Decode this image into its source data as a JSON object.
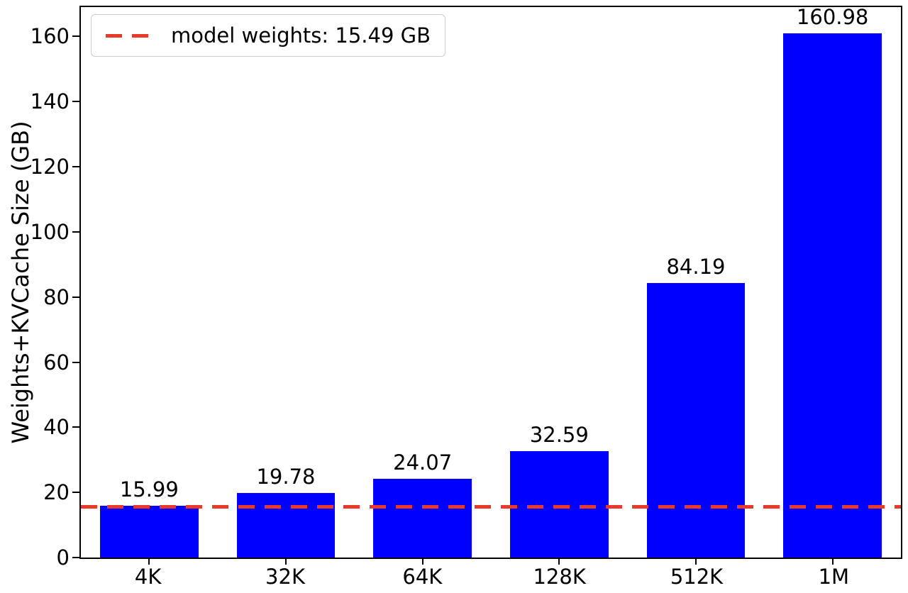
{
  "chart_data": {
    "type": "bar",
    "title": "",
    "xlabel": "",
    "ylabel": "Weights+KVCache Size (GB)",
    "categories": [
      "4K",
      "32K",
      "64K",
      "128K",
      "512K",
      "1M"
    ],
    "values": [
      15.99,
      19.78,
      24.07,
      32.59,
      84.19,
      160.98
    ],
    "bar_labels": [
      "15.99",
      "19.78",
      "24.07",
      "32.59",
      "84.19",
      "160.98"
    ],
    "bar_color": "#0000ff",
    "ylim": [
      0,
      169
    ],
    "yticks": [
      0,
      20,
      40,
      60,
      80,
      100,
      120,
      140,
      160
    ],
    "grid": false,
    "reference_line": {
      "value": 15.49,
      "color": "#e8392b",
      "style": "dashed",
      "label": "model weights: 15.49 GB"
    },
    "legend": {
      "position": "upper-left",
      "entries": [
        {
          "label": "model weights: 15.49 GB",
          "color": "#e8392b",
          "line_style": "dashed"
        }
      ]
    }
  }
}
